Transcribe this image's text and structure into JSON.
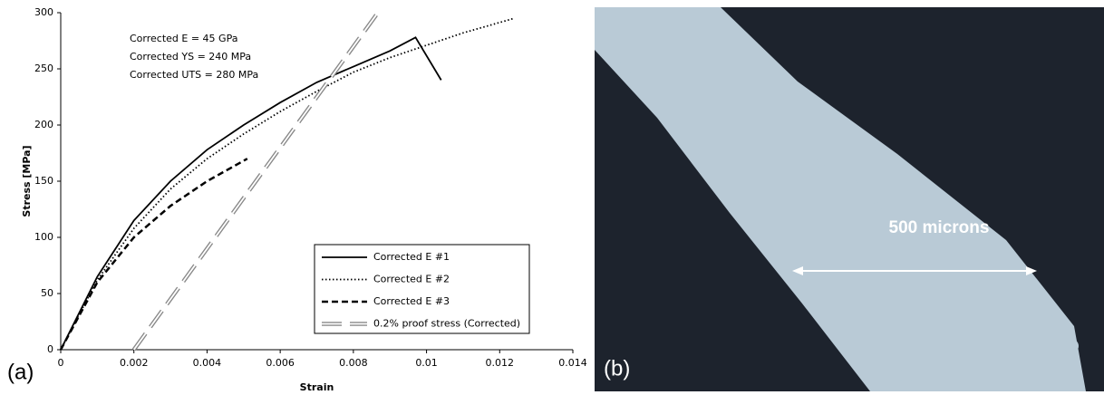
{
  "chart_data": {
    "type": "line",
    "xlabel": "Strain",
    "ylabel": "Stress [MPa]",
    "xlim": [
      0,
      0.014
    ],
    "ylim": [
      0,
      300
    ],
    "xticks": [
      0,
      0.002,
      0.004,
      0.006,
      0.008,
      0.01,
      0.012,
      0.014
    ],
    "yticks": [
      0,
      50,
      100,
      150,
      200,
      250,
      300
    ],
    "annotations": [
      "Corrected E = 45 GPa",
      "Corrected YS = 240 MPa",
      "Corrected UTS = 280 MPa"
    ],
    "legend": "lower right",
    "series": [
      {
        "name": "Corrected E #1",
        "color": "#000000",
        "style": "solid",
        "x": [
          0,
          0.001,
          0.002,
          0.003,
          0.004,
          0.005,
          0.006,
          0.007,
          0.008,
          0.009,
          0.0097,
          0.0104
        ],
        "values": [
          0,
          65,
          115,
          150,
          178,
          200,
          220,
          238,
          252,
          266,
          278,
          240
        ]
      },
      {
        "name": "Corrected E #2",
        "color": "#000000",
        "style": "dotted",
        "x": [
          0,
          0.001,
          0.002,
          0.003,
          0.004,
          0.005,
          0.006,
          0.007,
          0.008,
          0.009,
          0.01,
          0.011,
          0.0124
        ],
        "values": [
          0,
          62,
          108,
          143,
          170,
          192,
          212,
          230,
          247,
          260,
          271,
          282,
          295
        ]
      },
      {
        "name": "Corrected E #3",
        "color": "#000000",
        "style": "dashed",
        "x": [
          0,
          0.001,
          0.002,
          0.003,
          0.004,
          0.0051
        ],
        "values": [
          0,
          60,
          100,
          128,
          150,
          170
        ]
      },
      {
        "name": "0.2% proof stress (Corrected)",
        "color": "#888888",
        "style": "double-dashed",
        "x": [
          0.002,
          0.00867
        ],
        "values": [
          0,
          300
        ]
      }
    ]
  },
  "panel_labels": [
    "(a)",
    "(b)"
  ],
  "micrograph": {
    "scale_label": "500 microns"
  }
}
